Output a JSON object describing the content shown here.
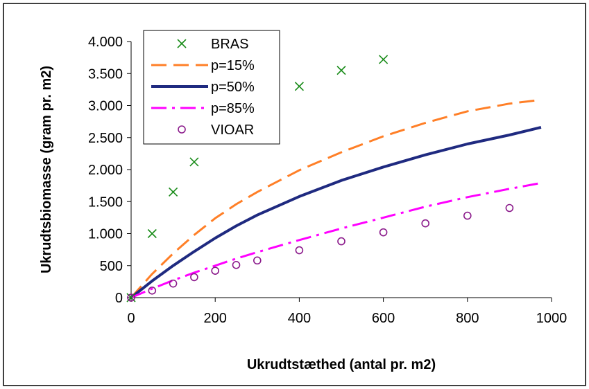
{
  "chart_data": {
    "type": "scatter",
    "title": "",
    "xlabel": "Ukrudtstæthed (antal pr. m2)",
    "ylabel": "Ukrudtsbiomasse (gram pr. m2)",
    "xlim": [
      0,
      1000
    ],
    "ylim": [
      0,
      4000
    ],
    "x_ticks": [
      0,
      200,
      400,
      600,
      800,
      1000
    ],
    "x_tick_labels": [
      "0",
      "200",
      "400",
      "600",
      "800",
      "1000"
    ],
    "y_ticks": [
      0,
      500,
      1000,
      1500,
      2000,
      2500,
      3000,
      3500,
      4000
    ],
    "y_tick_labels": [
      "0",
      "500",
      "1.000",
      "1.500",
      "2.000",
      "2.500",
      "3.000",
      "3.500",
      "4.000"
    ],
    "grid": false,
    "legend_position": "top-left",
    "series": [
      {
        "name": "BRAS",
        "kind": "scatter",
        "marker": "cross",
        "color": "#1a8c1a",
        "x": [
          0,
          50,
          100,
          150,
          400,
          500,
          600
        ],
        "y": [
          0,
          1000,
          1650,
          2120,
          3300,
          3550,
          3720
        ]
      },
      {
        "name": "p=15%",
        "kind": "line",
        "dash": "dashed",
        "color": "#ff7f27",
        "x": [
          0,
          50,
          100,
          150,
          200,
          250,
          300,
          400,
          500,
          600,
          700,
          800,
          900,
          975
        ],
        "y": [
          0,
          370,
          690,
          980,
          1240,
          1460,
          1650,
          1990,
          2270,
          2520,
          2730,
          2910,
          3030,
          3090
        ]
      },
      {
        "name": "p=50%",
        "kind": "line",
        "dash": "solid",
        "color": "#1f2a80",
        "x": [
          0,
          50,
          100,
          150,
          200,
          250,
          300,
          400,
          500,
          600,
          700,
          800,
          900,
          975
        ],
        "y": [
          0,
          260,
          500,
          720,
          930,
          1120,
          1290,
          1580,
          1830,
          2040,
          2230,
          2400,
          2540,
          2660
        ]
      },
      {
        "name": "p=85%",
        "kind": "line",
        "dash": "dash-dot",
        "color": "#ff00ff",
        "x": [
          0,
          50,
          100,
          150,
          200,
          250,
          300,
          400,
          500,
          600,
          700,
          800,
          900,
          975
        ],
        "y": [
          0,
          140,
          270,
          390,
          500,
          610,
          710,
          900,
          1080,
          1250,
          1420,
          1570,
          1700,
          1790
        ]
      },
      {
        "name": "VIOAR",
        "kind": "scatter",
        "marker": "circle",
        "color": "#8b1a8b",
        "x": [
          0,
          50,
          100,
          150,
          200,
          250,
          300,
          400,
          500,
          600,
          700,
          800,
          900
        ],
        "y": [
          0,
          110,
          220,
          320,
          420,
          510,
          580,
          740,
          880,
          1020,
          1160,
          1280,
          1400
        ]
      }
    ]
  }
}
